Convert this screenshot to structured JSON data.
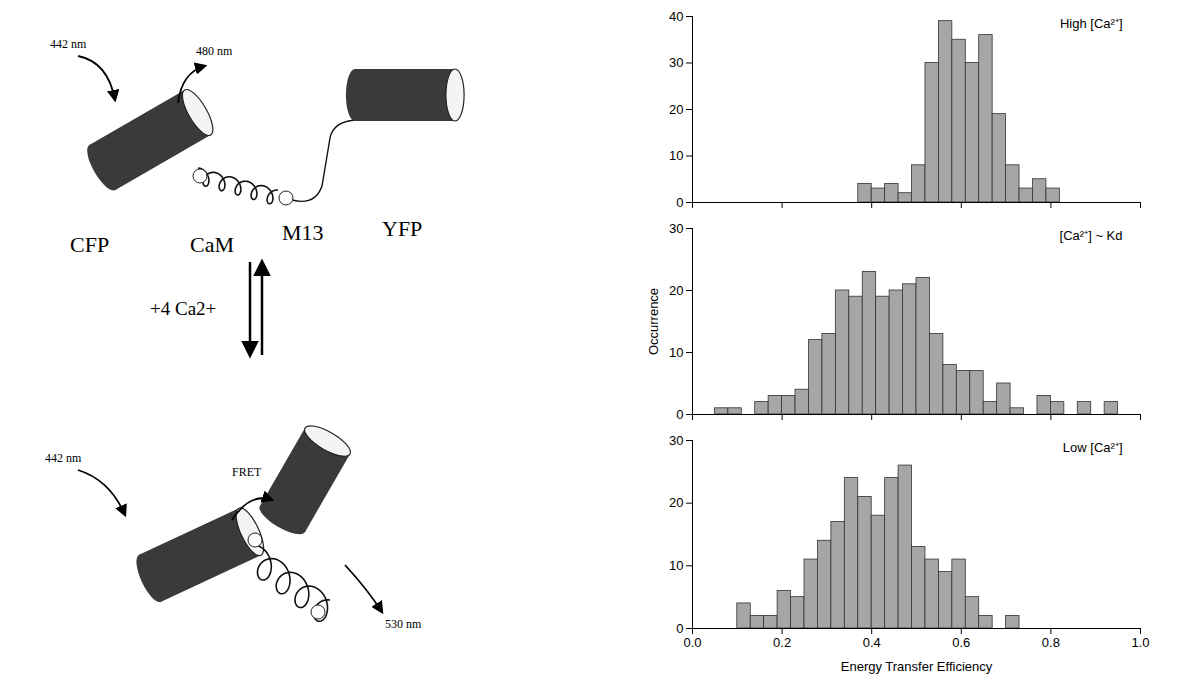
{
  "diagram": {
    "top_state": {
      "excitation": "442 nm",
      "emission": "480 nm",
      "labels": [
        "CFP",
        "CaM",
        "M13",
        "YFP"
      ]
    },
    "transition": "+4 Ca2+",
    "bottom_state": {
      "excitation": "442 nm",
      "transfer": "FRET",
      "emission": "530 nm"
    }
  },
  "chart_data": [
    {
      "type": "histogram",
      "title": "High [Ca²⁺]",
      "bins": [
        0.37,
        0.4,
        0.43,
        0.46,
        0.49,
        0.52,
        0.55,
        0.58,
        0.61,
        0.64,
        0.67,
        0.7,
        0.73,
        0.76,
        0.79,
        0.82
      ],
      "values": [
        4,
        3,
        4,
        2,
        8,
        30,
        39,
        35,
        30,
        36,
        19,
        8,
        3,
        5,
        3
      ],
      "color": "#a6a6a6",
      "xlim": [
        0,
        1
      ],
      "xticks": [
        {
          "value": 0,
          "label": "0.0"
        },
        0.2,
        0.4,
        0.6,
        0.8,
        {
          "value": 1,
          "label": "1.0"
        }
      ],
      "ylim": [
        0,
        40
      ],
      "yticks": [
        0,
        10,
        20,
        30,
        40
      ],
      "tick_labels": "y"
    },
    {
      "type": "histogram",
      "title": "[Ca²⁺] ~ Kd",
      "ylabel": "Occurrence",
      "bins": [
        0.05,
        0.08,
        0.11,
        0.14,
        0.17,
        0.2,
        0.23,
        0.26,
        0.29,
        0.32,
        0.35,
        0.38,
        0.41,
        0.44,
        0.47,
        0.5,
        0.53,
        0.56,
        0.59,
        0.62,
        0.65,
        0.68,
        0.71,
        0.74,
        0.77,
        0.8,
        0.83,
        0.86,
        0.89,
        0.92,
        0.95
      ],
      "values": [
        1,
        1,
        0,
        2,
        3,
        3,
        4,
        12,
        13,
        20,
        19,
        23,
        19,
        20,
        21,
        22,
        13,
        8,
        7,
        7,
        2,
        5,
        1,
        0,
        3,
        2,
        0,
        2,
        0,
        2
      ],
      "color": "#a6a6a6",
      "xlim": [
        0,
        1
      ],
      "xticks": [
        {
          "value": 0,
          "label": "0.0"
        },
        0.2,
        0.4,
        0.6,
        0.8,
        {
          "value": 1,
          "label": "1.0"
        }
      ],
      "ylim": [
        0,
        30
      ],
      "yticks": [
        0,
        10,
        20,
        30
      ],
      "tick_labels": "y"
    },
    {
      "type": "histogram",
      "title": "Low [Ca²⁺]",
      "xlabel": "Energy Transfer Efficiency",
      "bins": [
        0.1,
        0.13,
        0.16,
        0.19,
        0.22,
        0.25,
        0.28,
        0.31,
        0.34,
        0.37,
        0.4,
        0.43,
        0.46,
        0.49,
        0.52,
        0.55,
        0.58,
        0.61,
        0.64,
        0.67,
        0.7,
        0.73
      ],
      "values": [
        4,
        2,
        2,
        6,
        5,
        11,
        14,
        17,
        24,
        21,
        18,
        24,
        26,
        13,
        11,
        9,
        11,
        5,
        2,
        0,
        2
      ],
      "color": "#a6a6a6",
      "xlim": [
        0,
        1
      ],
      "xticks": [
        {
          "value": 0,
          "label": "0.0"
        },
        0.2,
        0.4,
        0.6,
        0.8,
        {
          "value": 1,
          "label": "1.0"
        }
      ],
      "ylim": [
        0,
        30
      ],
      "yticks": [
        0,
        10,
        20,
        30
      ]
    }
  ]
}
